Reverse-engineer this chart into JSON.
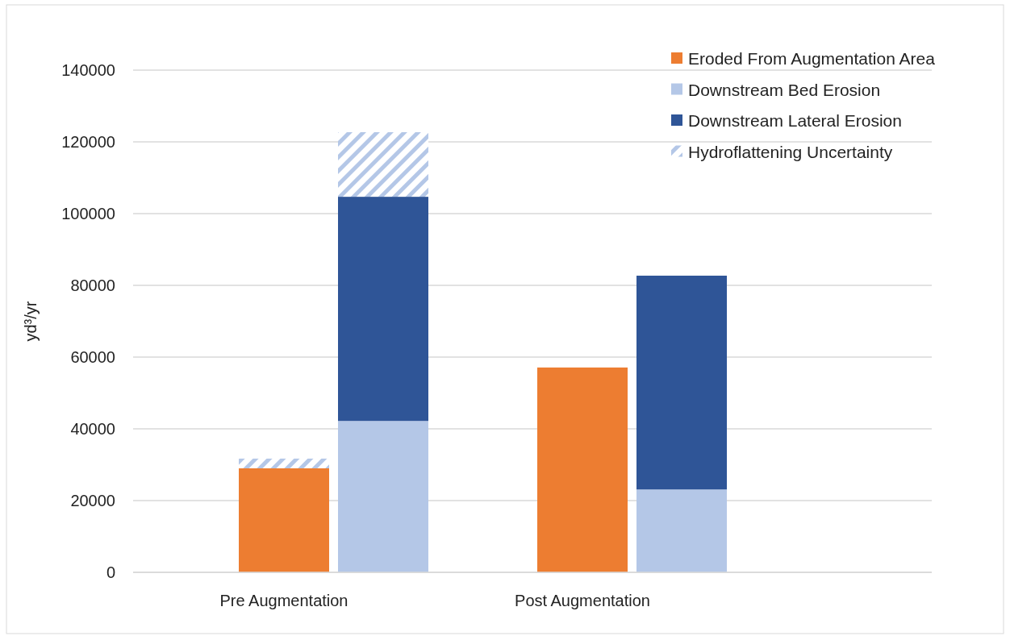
{
  "chart_data": {
    "type": "bar",
    "ylabel": "yd³/yr",
    "categories": [
      "Pre Augmentation",
      null,
      "Post Augmentation",
      null
    ],
    "stacked": true,
    "series": [
      {
        "name": "Eroded From Augmentation Area",
        "color": "#ed7d31",
        "values": [
          29000,
          null,
          57100,
          null
        ]
      },
      {
        "name": "Downstream Bed Erosion",
        "color": "#b4c7e7",
        "values": [
          null,
          42200,
          null,
          23100
        ]
      },
      {
        "name": "Downstream Lateral Erosion",
        "color": "#2f5597",
        "values": [
          null,
          62500,
          null,
          59600
        ]
      },
      {
        "name": "Hydroflattening Uncertainty",
        "color": "#b4c7e7",
        "values": [
          2700,
          18000,
          null,
          null
        ]
      }
    ],
    "ylim": [
      0,
      140000
    ],
    "yticks": [
      0,
      20000,
      40000,
      60000,
      80000,
      100000,
      120000,
      140000
    ],
    "grid": "y",
    "legend": "top right"
  }
}
